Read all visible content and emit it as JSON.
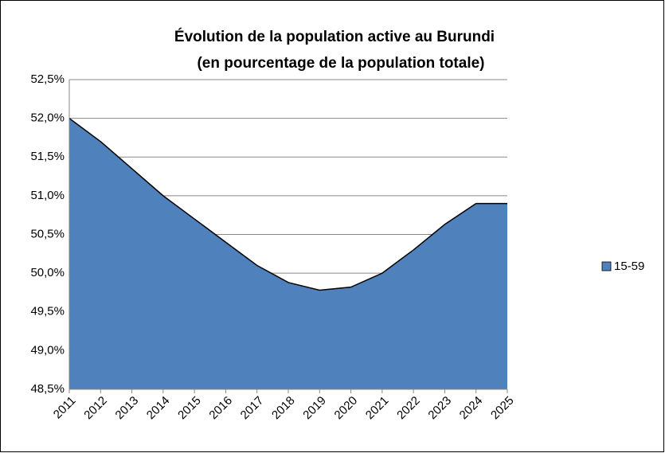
{
  "chart_data": {
    "type": "area",
    "title": [
      "Évolution de la population active au Burundi",
      "(en pourcentage de la population totale)"
    ],
    "categories": [
      "2011",
      "2012",
      "2013",
      "2014",
      "2015",
      "2016",
      "2017",
      "2018",
      "2019",
      "2020",
      "2021",
      "2022",
      "2023",
      "2024",
      "2025"
    ],
    "series": [
      {
        "name": "15-59",
        "color": "#4f81bd",
        "values": [
          52.0,
          51.7,
          51.35,
          51.0,
          50.7,
          50.4,
          50.1,
          49.88,
          49.78,
          49.82,
          50.0,
          50.3,
          50.63,
          50.9,
          50.9
        ]
      }
    ],
    "ylim": [
      48.5,
      52.5
    ],
    "yticks": [
      {
        "value": 48.5,
        "label": "48,5%"
      },
      {
        "value": 49.0,
        "label": "49,0%"
      },
      {
        "value": 49.5,
        "label": "49,5%"
      },
      {
        "value": 50.0,
        "label": "50,0%"
      },
      {
        "value": 50.5,
        "label": "50,5%"
      },
      {
        "value": 51.0,
        "label": "51,0%"
      },
      {
        "value": 51.5,
        "label": "51,5%"
      },
      {
        "value": 52.0,
        "label": "52,0%"
      },
      {
        "value": 52.5,
        "label": "52,5%"
      }
    ],
    "grid": true,
    "legend": "right"
  }
}
